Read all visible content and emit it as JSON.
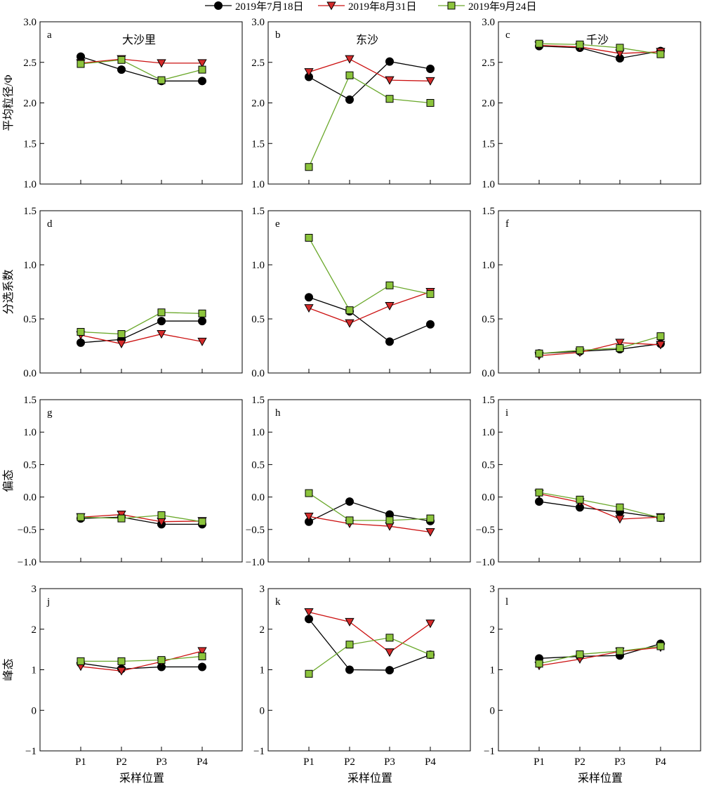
{
  "legend": [
    {
      "label": "2019年7月18日",
      "color": "#000000",
      "marker": "circle"
    },
    {
      "label": "2019年8月31日",
      "color": "#cc1111",
      "marker": "triangle-down"
    },
    {
      "label": "2019年9月24日",
      "color": "#6aa82a",
      "marker": "square"
    }
  ],
  "marker_fills": [
    "#000000",
    "#d42a2a",
    "#8cc43c"
  ],
  "row_ylabels": [
    "平均粒径/Φ",
    "分选系数",
    "偏态",
    "峰态"
  ],
  "col_titles": [
    "大沙里",
    "东沙",
    "千沙"
  ],
  "xlabel": "采样位置",
  "chart_data": [
    {
      "type": "line",
      "panel": "a",
      "row": 0,
      "col": 0,
      "title": "大沙里",
      "ylabel": "平均粒径/Φ",
      "categories": [
        "P1",
        "P2",
        "P3",
        "P4"
      ],
      "ylim": [
        1.0,
        3.0
      ],
      "yticks": [
        "1.0",
        "1.5",
        "2.0",
        "2.5",
        "3.0"
      ],
      "series": [
        {
          "name": "2019年7月18日",
          "values": [
            2.57,
            2.41,
            2.27,
            2.27
          ]
        },
        {
          "name": "2019年8月31日",
          "values": [
            2.49,
            2.54,
            2.49,
            2.49
          ]
        },
        {
          "name": "2019年9月24日",
          "values": [
            2.48,
            2.53,
            2.28,
            2.41
          ]
        }
      ]
    },
    {
      "type": "line",
      "panel": "b",
      "row": 0,
      "col": 1,
      "title": "东沙",
      "categories": [
        "P1",
        "P2",
        "P3",
        "P4"
      ],
      "ylim": [
        1.0,
        3.0
      ],
      "yticks": [
        "1.0",
        "1.5",
        "2.0",
        "2.5",
        "3.0"
      ],
      "series": [
        {
          "name": "2019年7月18日",
          "values": [
            2.32,
            2.04,
            2.51,
            2.42
          ]
        },
        {
          "name": "2019年8月31日",
          "values": [
            2.38,
            2.54,
            2.28,
            2.27
          ]
        },
        {
          "name": "2019年9月24日",
          "values": [
            1.21,
            2.34,
            2.05,
            2.0
          ]
        }
      ]
    },
    {
      "type": "line",
      "panel": "c",
      "row": 0,
      "col": 2,
      "title": "千沙",
      "categories": [
        "P1",
        "P2",
        "P3",
        "P4"
      ],
      "ylim": [
        1.0,
        3.0
      ],
      "yticks": [
        "1.0",
        "1.5",
        "2.0",
        "2.5",
        "3.0"
      ],
      "series": [
        {
          "name": "2019年7月18日",
          "values": [
            2.7,
            2.68,
            2.55,
            2.64
          ]
        },
        {
          "name": "2019年8月31日",
          "values": [
            2.71,
            2.69,
            2.61,
            2.63
          ]
        },
        {
          "name": "2019年9月24日",
          "values": [
            2.73,
            2.72,
            2.68,
            2.6
          ]
        }
      ]
    },
    {
      "type": "line",
      "panel": "d",
      "row": 1,
      "col": 0,
      "ylabel": "分选系数",
      "categories": [
        "P1",
        "P2",
        "P3",
        "P4"
      ],
      "ylim": [
        0.0,
        1.5
      ],
      "yticks": [
        "0.0",
        "0.5",
        "1.0",
        "1.5"
      ],
      "series": [
        {
          "name": "2019年7月18日",
          "values": [
            0.28,
            0.31,
            0.48,
            0.48
          ]
        },
        {
          "name": "2019年8月31日",
          "values": [
            0.35,
            0.27,
            0.36,
            0.29
          ]
        },
        {
          "name": "2019年9月24日",
          "values": [
            0.38,
            0.36,
            0.56,
            0.55
          ]
        }
      ]
    },
    {
      "type": "line",
      "panel": "e",
      "row": 1,
      "col": 1,
      "categories": [
        "P1",
        "P2",
        "P3",
        "P4"
      ],
      "ylim": [
        0.0,
        1.5
      ],
      "yticks": [
        "0.0",
        "0.5",
        "1.0",
        "1.5"
      ],
      "series": [
        {
          "name": "2019年7月18日",
          "values": [
            0.7,
            0.57,
            0.29,
            0.45
          ]
        },
        {
          "name": "2019年8月31日",
          "values": [
            0.6,
            0.46,
            0.62,
            0.75
          ]
        },
        {
          "name": "2019年9月24日",
          "values": [
            1.25,
            0.58,
            0.81,
            0.73
          ]
        }
      ]
    },
    {
      "type": "line",
      "panel": "f",
      "row": 1,
      "col": 2,
      "categories": [
        "P1",
        "P2",
        "P3",
        "P4"
      ],
      "ylim": [
        0.0,
        1.5
      ],
      "yticks": [
        "0.0",
        "0.5",
        "1.0",
        "1.5"
      ],
      "series": [
        {
          "name": "2019年7月18日",
          "values": [
            0.18,
            0.2,
            0.22,
            0.27
          ]
        },
        {
          "name": "2019年8月31日",
          "values": [
            0.16,
            0.19,
            0.28,
            0.26
          ]
        },
        {
          "name": "2019年9月24日",
          "values": [
            0.18,
            0.21,
            0.23,
            0.34
          ]
        }
      ]
    },
    {
      "type": "line",
      "panel": "g",
      "row": 2,
      "col": 0,
      "ylabel": "偏态",
      "categories": [
        "P1",
        "P2",
        "P3",
        "P4"
      ],
      "ylim": [
        -1.0,
        1.5
      ],
      "yticks": [
        "−1.0",
        "−0.5",
        "0.0",
        "0.5",
        "1.0",
        "1.5"
      ],
      "series": [
        {
          "name": "2019年7月18日",
          "values": [
            -0.33,
            -0.31,
            -0.42,
            -0.42
          ]
        },
        {
          "name": "2019年8月31日",
          "values": [
            -0.31,
            -0.27,
            -0.38,
            -0.37
          ]
        },
        {
          "name": "2019年9月24日",
          "values": [
            -0.31,
            -0.33,
            -0.28,
            -0.38
          ]
        }
      ]
    },
    {
      "type": "line",
      "panel": "h",
      "row": 2,
      "col": 1,
      "categories": [
        "P1",
        "P2",
        "P3",
        "P4"
      ],
      "ylim": [
        -1.0,
        1.5
      ],
      "yticks": [
        "−1.0",
        "−0.5",
        "0.0",
        "0.5",
        "1.0",
        "1.5"
      ],
      "series": [
        {
          "name": "2019年7月18日",
          "values": [
            -0.38,
            -0.07,
            -0.27,
            -0.37
          ]
        },
        {
          "name": "2019年8月31日",
          "values": [
            -0.3,
            -0.41,
            -0.45,
            -0.54
          ]
        },
        {
          "name": "2019年9月24日",
          "values": [
            0.06,
            -0.36,
            -0.36,
            -0.33
          ]
        }
      ]
    },
    {
      "type": "line",
      "panel": "i",
      "row": 2,
      "col": 2,
      "categories": [
        "P1",
        "P2",
        "P3",
        "P4"
      ],
      "ylim": [
        -1.0,
        1.5
      ],
      "yticks": [
        "−1.0",
        "−0.5",
        "0.0",
        "0.5",
        "1.0",
        "1.5"
      ],
      "series": [
        {
          "name": "2019年7月18日",
          "values": [
            -0.07,
            -0.16,
            -0.23,
            -0.32
          ]
        },
        {
          "name": "2019年8月31日",
          "values": [
            0.05,
            -0.08,
            -0.34,
            -0.31
          ]
        },
        {
          "name": "2019年9月24日",
          "values": [
            0.07,
            -0.04,
            -0.16,
            -0.32
          ]
        }
      ]
    },
    {
      "type": "line",
      "panel": "j",
      "row": 3,
      "col": 0,
      "ylabel": "峰态",
      "categories": [
        "P1",
        "P2",
        "P3",
        "P4"
      ],
      "ylim": [
        -1,
        3
      ],
      "yticks": [
        "−1",
        "0",
        "1",
        "2",
        "3"
      ],
      "series": [
        {
          "name": "2019年7月18日",
          "values": [
            1.16,
            1.02,
            1.07,
            1.07
          ]
        },
        {
          "name": "2019年8月31日",
          "values": [
            1.08,
            0.97,
            1.2,
            1.46
          ]
        },
        {
          "name": "2019年9月24日",
          "values": [
            1.21,
            1.21,
            1.24,
            1.33
          ]
        }
      ]
    },
    {
      "type": "line",
      "panel": "k",
      "row": 3,
      "col": 1,
      "categories": [
        "P1",
        "P2",
        "P3",
        "P4"
      ],
      "ylim": [
        -1,
        3
      ],
      "yticks": [
        "−1",
        "0",
        "1",
        "2",
        "3"
      ],
      "series": [
        {
          "name": "2019年7月18日",
          "values": [
            2.25,
            1.0,
            0.99,
            1.37
          ]
        },
        {
          "name": "2019年8月31日",
          "values": [
            2.42,
            2.18,
            1.43,
            2.14
          ]
        },
        {
          "name": "2019年9月24日",
          "values": [
            0.9,
            1.62,
            1.79,
            1.37
          ]
        }
      ]
    },
    {
      "type": "line",
      "panel": "l",
      "row": 3,
      "col": 2,
      "categories": [
        "P1",
        "P2",
        "P3",
        "P4"
      ],
      "ylim": [
        -1,
        3
      ],
      "yticks": [
        "−1",
        "0",
        "1",
        "2",
        "3"
      ],
      "series": [
        {
          "name": "2019年7月18日",
          "values": [
            1.28,
            1.33,
            1.35,
            1.64
          ]
        },
        {
          "name": "2019年8月31日",
          "values": [
            1.1,
            1.26,
            1.45,
            1.55
          ]
        },
        {
          "name": "2019年9月24日",
          "values": [
            1.15,
            1.38,
            1.46,
            1.58
          ]
        }
      ]
    }
  ]
}
